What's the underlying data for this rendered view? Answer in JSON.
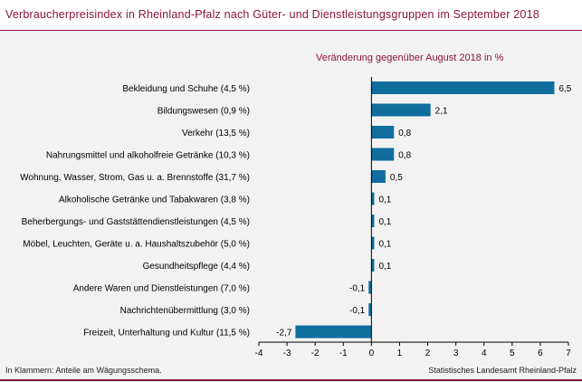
{
  "title": "Verbraucherpreisindex in Rheinland-Pfalz nach Güter- und Dienstleistungsgruppen im September 2018",
  "subtitle": "Veränderung gegenüber August 2018 in %",
  "footnote_left": "In Klammern: Anteile am Wägungsschema.",
  "footnote_right": "Statistisches Landesamt Rheinland-Pfalz",
  "colors": {
    "bar": "#0f6e9e",
    "accent": "#8a1538",
    "panel": "#f2f2f2"
  },
  "chart_data": {
    "type": "bar",
    "orientation": "horizontal",
    "title": "Verbraucherpreisindex in Rheinland-Pfalz nach Güter- und Dienstleistungsgruppen im September 2018",
    "subtitle": "Veränderung gegenüber August 2018 in %",
    "categories": [
      "Bekleidung und Schuhe (4,5 %)",
      "Bildungswesen (0,9 %)",
      "Verkehr (13,5 %)",
      "Nahrungsmittel und alkoholfreie Getränke (10,3 %)",
      "Wohnung, Wasser, Strom, Gas u. a. Brennstoffe (31,7 %)",
      "Alkoholische Getränke und Tabakwaren (3,8 %)",
      "Beherbergungs- und Gaststättendienstleistungen (4,5 %)",
      "Möbel, Leuchten, Geräte u. a. Haushaltszubehör (5,0 %)",
      "Gesundheitspflege (4,4 %)",
      "Andere Waren und Dienstleistungen (7,0 %)",
      "Nachrichtenübermittlung (3,0 %)",
      "Freizeit, Unterhaltung und Kultur (11,5 %)"
    ],
    "values": [
      6.5,
      2.1,
      0.8,
      0.8,
      0.5,
      0.1,
      0.1,
      0.1,
      0.1,
      -0.1,
      -0.1,
      -2.7
    ],
    "value_labels": [
      "6,5",
      "2,1",
      "0,8",
      "0,8",
      "0,5",
      "0,1",
      "0,1",
      "0,1",
      "0,1",
      "-0,1",
      "-0,1",
      "-2,7"
    ],
    "xlim": [
      -4,
      7
    ],
    "xticks": [
      -4,
      -3,
      -2,
      -1,
      0,
      1,
      2,
      3,
      4,
      5,
      6,
      7
    ],
    "xtick_labels": [
      "-4",
      "-3",
      "-2",
      "-1",
      "0",
      "1",
      "2",
      "3",
      "4",
      "5",
      "6",
      "7"
    ],
    "grid": false,
    "legend": "none"
  }
}
